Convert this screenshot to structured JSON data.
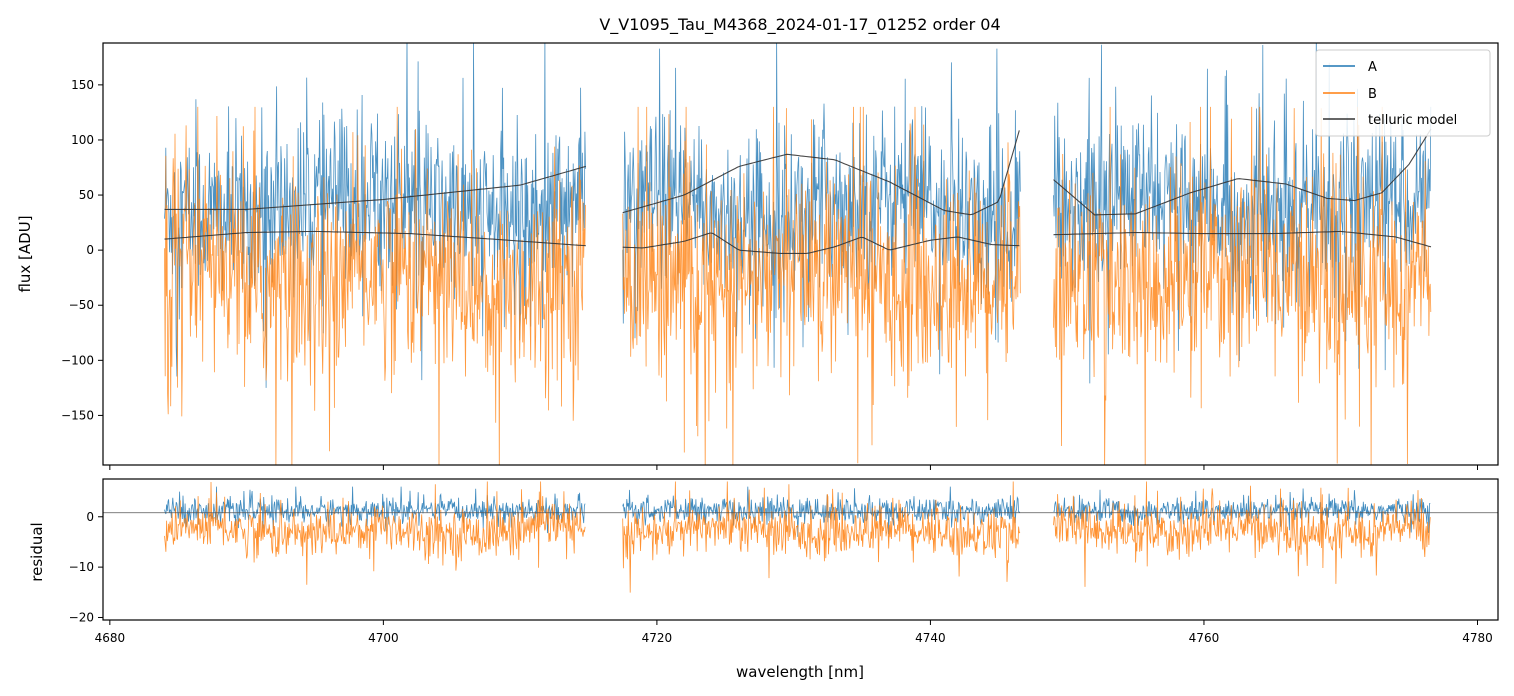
{
  "chart_data": [
    {
      "type": "line",
      "panel": "top",
      "title": "V_V1095_Tau_M4368_2024-01-17_01252  order 04",
      "xlabel": "",
      "ylabel": "flux [ADU]",
      "xlim": [
        4679.5,
        4781.5
      ],
      "ylim": [
        -195,
        188
      ],
      "yticks": [
        150,
        100,
        50,
        0,
        -50,
        -100,
        -150
      ],
      "ytick_labels": [
        "150",
        "100",
        "50",
        "0",
        "−50",
        "−100",
        "−150"
      ],
      "xticks": [
        4680,
        4700,
        4720,
        4740,
        4760,
        4780
      ],
      "legend": {
        "position": "top-right",
        "entries": [
          "A",
          "B",
          "telluric model"
        ]
      },
      "colors": {
        "A": "#1f77b4",
        "B": "#ff7f0e",
        "telluric model": "#333333"
      },
      "segments": [
        [
          4684.0,
          4714.8
        ],
        [
          4717.5,
          4746.6
        ],
        [
          4749.0,
          4776.6
        ]
      ],
      "series": [
        {
          "name": "A",
          "description": "noisy observed flux, scatter roughly between -120 and +190 ADU"
        },
        {
          "name": "B",
          "description": "noisy observed flux, scatter roughly between -195 and +120 ADU"
        },
        {
          "name": "telluric model (upper curve)",
          "x": [
            4684,
            4690,
            4700,
            4710,
            4714.8,
            4717.5,
            4722,
            4726,
            4729.5,
            4733,
            4737,
            4741,
            4743,
            4745,
            4746.6,
            4749,
            4752,
            4755,
            4759,
            4762.5,
            4766,
            4769,
            4771,
            4773,
            4775,
            4776.6
          ],
          "y": [
            37,
            37,
            46,
            59,
            76,
            34,
            50,
            76,
            87,
            82,
            62,
            36,
            32,
            44,
            113,
            64,
            32,
            33,
            52,
            65,
            60,
            47,
            45,
            52,
            78,
            110
          ]
        },
        {
          "name": "telluric model (lower curve)",
          "x": [
            4684,
            4690,
            4695,
            4702,
            4708,
            4714.8,
            4719,
            4722,
            4724,
            4726,
            4729,
            4731,
            4733,
            4735,
            4737,
            4740,
            4742,
            4744.5,
            4746.6,
            4749,
            4755,
            4760,
            4765,
            4770,
            4774,
            4776.6
          ],
          "y": [
            10,
            16,
            17,
            15,
            10,
            4,
            2,
            8,
            16,
            0,
            -3,
            -3,
            3,
            12,
            0,
            9,
            12,
            5,
            4,
            14,
            16,
            15,
            15,
            17,
            12,
            3
          ]
        }
      ]
    },
    {
      "type": "line",
      "panel": "bottom",
      "title": "",
      "xlabel": "wavelength [nm]",
      "ylabel": "residual",
      "xlim": [
        4679.5,
        4781.5
      ],
      "ylim": [
        -20.5,
        7.5
      ],
      "yticks": [
        0,
        -10,
        -20
      ],
      "ytick_labels": [
        "0",
        "−10",
        "−20"
      ],
      "xticks": [
        4680,
        4700,
        4720,
        4740,
        4760,
        4780
      ],
      "xtick_labels": [
        "4680",
        "4700",
        "4720",
        "4740",
        "4760",
        "4780"
      ],
      "reference_line": 0.8,
      "series": [
        {
          "name": "A",
          "description": "residual scatter roughly between -3 and +5"
        },
        {
          "name": "B",
          "description": "residual scatter roughly between -20 and +6"
        }
      ]
    }
  ]
}
